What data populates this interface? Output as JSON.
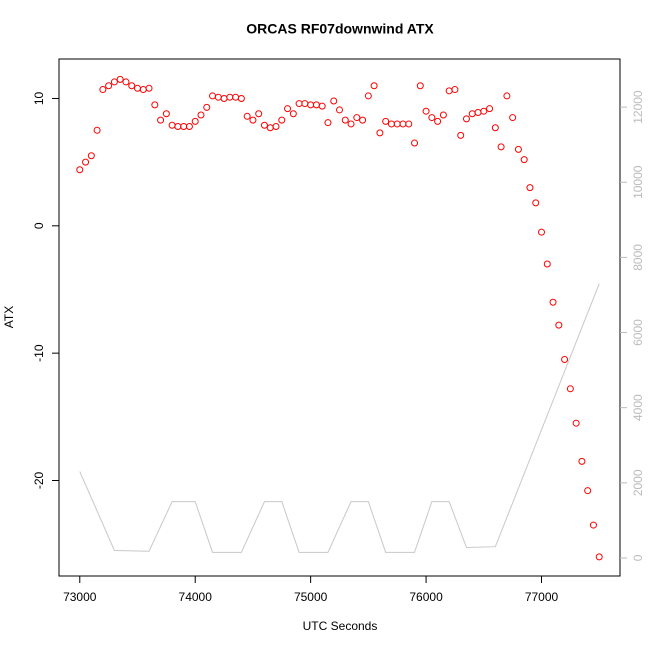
{
  "chart_data": {
    "type": "scatter",
    "title": "ORCAS RF07downwind ATX",
    "x_label": "UTC Seconds",
    "y_label": "ATX",
    "xlim": [
      72820,
      77680
    ],
    "xticks": [
      73000,
      74000,
      75000,
      76000,
      77000
    ],
    "ylim": [
      -27.5,
      13.1
    ],
    "yticks": [
      -20,
      -10,
      0,
      10
    ],
    "y2lim": [
      -480,
      13280
    ],
    "y2ticks": [
      0,
      2000,
      4000,
      6000,
      8000,
      10000,
      12000
    ],
    "x": [
      73000,
      73050,
      73100,
      73150,
      73200,
      73250,
      73300,
      73350,
      73400,
      73450,
      73500,
      73550,
      73600,
      73650,
      73700,
      73750,
      73800,
      73850,
      73900,
      73950,
      74000,
      74050,
      74100,
      74150,
      74200,
      74250,
      74300,
      74350,
      74400,
      74450,
      74500,
      74550,
      74600,
      74650,
      74700,
      74750,
      74800,
      74850,
      74900,
      74950,
      75000,
      75050,
      75100,
      75150,
      75200,
      75250,
      75300,
      75350,
      75400,
      75450,
      75500,
      75550,
      75600,
      75650,
      75700,
      75750,
      75800,
      75850,
      75900,
      75950,
      76000,
      76050,
      76100,
      76150,
      76200,
      76250,
      76300,
      76350,
      76400,
      76450,
      76500,
      76550,
      76600,
      76650,
      76700,
      76750,
      76800,
      76850,
      76900,
      76950,
      77000,
      77050,
      77100,
      77150,
      77200,
      77250,
      77300,
      77350,
      77400,
      77450,
      77500
    ],
    "series": [
      {
        "type": "scatter",
        "color": "#ff0000",
        "values": [
          4.4,
          5.0,
          5.5,
          7.5,
          10.7,
          11.0,
          11.3,
          11.5,
          11.3,
          11.0,
          10.8,
          10.7,
          10.8,
          9.5,
          8.3,
          8.8,
          7.9,
          7.8,
          7.8,
          7.8,
          8.2,
          8.7,
          9.3,
          10.2,
          10.1,
          10.0,
          10.1,
          10.1,
          10.0,
          8.6,
          8.3,
          8.8,
          7.9,
          7.7,
          7.8,
          8.3,
          9.2,
          8.8,
          9.6,
          9.6,
          9.5,
          9.5,
          9.4,
          8.1,
          9.8,
          9.1,
          8.3,
          8.0,
          8.5,
          8.3,
          10.2,
          11.0,
          7.3,
          8.2,
          8.0,
          8.0,
          8.0,
          8.0,
          6.5,
          11.0,
          9.0,
          8.5,
          8.2,
          8.7,
          10.6,
          10.7,
          7.1,
          8.4,
          8.8,
          8.9,
          9.0,
          9.2,
          7.7,
          6.2,
          10.2,
          8.5,
          6.0,
          5.2,
          3.0,
          1.8,
          -0.5,
          -3.0,
          -6.0,
          -7.8,
          -10.5,
          -12.8,
          -15.5,
          -18.5,
          -20.8,
          -23.5,
          -26.0
        ]
      },
      {
        "type": "line",
        "axis": "y2",
        "color": "#c8c8c8",
        "x": [
          73000,
          73300,
          73600,
          73800,
          74000,
          74150,
          74400,
          74600,
          74750,
          74900,
          75150,
          75350,
          75500,
          75650,
          75900,
          76050,
          76200,
          76350,
          76600,
          77500
        ],
        "values": [
          2300,
          200,
          180,
          1500,
          1500,
          150,
          150,
          1500,
          1500,
          150,
          150,
          1500,
          1500,
          150,
          150,
          1500,
          1500,
          280,
          300,
          7300
        ]
      }
    ]
  }
}
